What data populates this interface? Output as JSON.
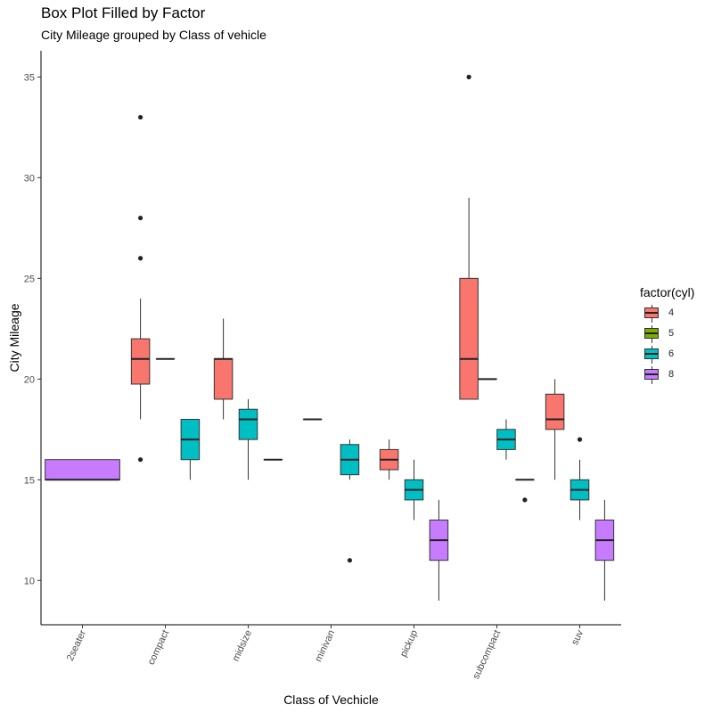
{
  "chart_data": {
    "type": "boxplot",
    "title": "Box Plot Filled by Factor",
    "subtitle": "City Mileage grouped by Class of vehicle",
    "xlabel": "Class of Vechicle",
    "ylabel": "City Mileage",
    "ylim": [
      7.8,
      36.3
    ],
    "yticks": [
      10,
      15,
      20,
      25,
      30,
      35
    ],
    "categories": [
      "2seater",
      "compact",
      "midsize",
      "minivan",
      "pickup",
      "subcompact",
      "suv"
    ],
    "legend": {
      "title": "factor(cyl)",
      "placement": "right"
    },
    "series": [
      {
        "name": "4",
        "color": "#F8766D"
      },
      {
        "name": "5",
        "color": "#7CAE00"
      },
      {
        "name": "6",
        "color": "#00BFC4"
      },
      {
        "name": "8",
        "color": "#C77CFF"
      }
    ],
    "boxes": [
      {
        "category": "2seater",
        "group": "8",
        "min": 15,
        "q1": 15,
        "median": 15,
        "q3": 16,
        "max": 16,
        "outliers": []
      },
      {
        "category": "compact",
        "group": "4",
        "min": 18,
        "q1": 19.75,
        "median": 21,
        "q3": 22,
        "max": 24,
        "outliers": [
          16,
          26,
          28,
          33
        ]
      },
      {
        "category": "compact",
        "group": "5",
        "min": 21,
        "q1": 21,
        "median": 21,
        "q3": 21,
        "max": 21,
        "outliers": []
      },
      {
        "category": "compact",
        "group": "6",
        "min": 15,
        "q1": 16,
        "median": 17,
        "q3": 18,
        "max": 18,
        "outliers": []
      },
      {
        "category": "midsize",
        "group": "4",
        "min": 18,
        "q1": 19,
        "median": 21,
        "q3": 21,
        "max": 23,
        "outliers": []
      },
      {
        "category": "midsize",
        "group": "6",
        "min": 15,
        "q1": 17,
        "median": 18,
        "q3": 18.5,
        "max": 19,
        "outliers": []
      },
      {
        "category": "midsize",
        "group": "8",
        "min": 16,
        "q1": 16,
        "median": 16,
        "q3": 16,
        "max": 16,
        "outliers": []
      },
      {
        "category": "minivan",
        "group": "4",
        "min": 18,
        "q1": 18,
        "median": 18,
        "q3": 18,
        "max": 18,
        "outliers": []
      },
      {
        "category": "minivan",
        "group": "6",
        "min": 15,
        "q1": 15.25,
        "median": 16,
        "q3": 16.75,
        "max": 17,
        "outliers": [
          11
        ]
      },
      {
        "category": "pickup",
        "group": "4",
        "min": 15,
        "q1": 15.5,
        "median": 16,
        "q3": 16.5,
        "max": 17,
        "outliers": []
      },
      {
        "category": "pickup",
        "group": "6",
        "min": 13,
        "q1": 14,
        "median": 14.5,
        "q3": 15,
        "max": 16,
        "outliers": []
      },
      {
        "category": "pickup",
        "group": "8",
        "min": 9,
        "q1": 11,
        "median": 12,
        "q3": 13,
        "max": 14,
        "outliers": []
      },
      {
        "category": "subcompact",
        "group": "4",
        "min": 19,
        "q1": 19,
        "median": 21,
        "q3": 25,
        "max": 29,
        "outliers": [
          35
        ]
      },
      {
        "category": "subcompact",
        "group": "5",
        "min": 20,
        "q1": 20,
        "median": 20,
        "q3": 20,
        "max": 20,
        "outliers": []
      },
      {
        "category": "subcompact",
        "group": "6",
        "min": 16,
        "q1": 16.5,
        "median": 17,
        "q3": 17.5,
        "max": 18,
        "outliers": []
      },
      {
        "category": "subcompact",
        "group": "8",
        "min": 15,
        "q1": 15,
        "median": 15,
        "q3": 15,
        "max": 15,
        "outliers": [
          14
        ]
      },
      {
        "category": "suv",
        "group": "4",
        "min": 15,
        "q1": 17.5,
        "median": 18,
        "q3": 19.25,
        "max": 20,
        "outliers": []
      },
      {
        "category": "suv",
        "group": "6",
        "min": 13,
        "q1": 14,
        "median": 14.5,
        "q3": 15,
        "max": 16,
        "outliers": [
          17
        ]
      },
      {
        "category": "suv",
        "group": "8",
        "min": 9,
        "q1": 11,
        "median": 12,
        "q3": 13,
        "max": 14,
        "outliers": []
      }
    ]
  }
}
